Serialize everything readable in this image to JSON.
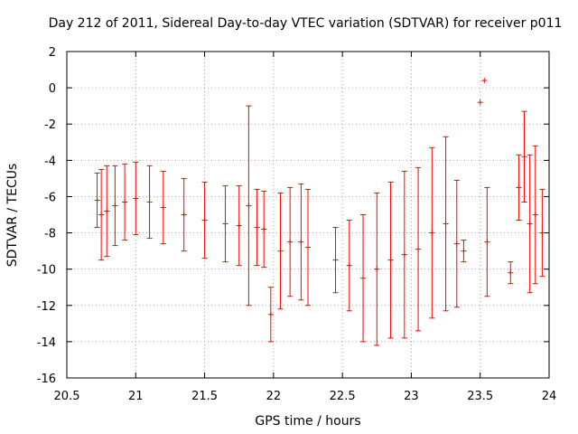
{
  "chart_data": {
    "type": "scatter",
    "title": "Day 212 of 2011, Sidereal Day-to-day VTEC variation (SDTVAR) for receiver p011",
    "xlabel": "GPS time / hours",
    "ylabel": "SDTVAR / TECUs",
    "xlim": [
      20.5,
      24
    ],
    "ylim": [
      -16,
      2
    ],
    "xticks": [
      20.5,
      21,
      21.5,
      22,
      22.5,
      23,
      23.5,
      24
    ],
    "yticks": [
      -16,
      -14,
      -12,
      -10,
      -8,
      -6,
      -4,
      -2,
      0,
      2
    ],
    "grid": true,
    "marker": "+",
    "color": "#ff0000",
    "error_bars": true,
    "series": [
      {
        "name": "SDTVAR",
        "x": [
          20.72,
          20.75,
          20.79,
          20.85,
          20.92,
          21.0,
          21.1,
          21.2,
          21.35,
          21.5,
          21.65,
          21.75,
          21.82,
          21.88,
          21.93,
          21.98,
          22.05,
          22.12,
          22.2,
          22.25,
          22.45,
          22.55,
          22.65,
          22.75,
          22.85,
          22.95,
          23.05,
          23.15,
          23.25,
          23.33,
          23.38,
          23.5,
          23.53,
          23.55,
          23.72,
          23.78,
          23.82,
          23.86,
          23.9,
          23.95
        ],
        "y": [
          -6.2,
          -7.0,
          -6.8,
          -6.5,
          -6.3,
          -6.1,
          -6.3,
          -6.6,
          -7.0,
          -7.3,
          -7.5,
          -7.6,
          -6.5,
          -7.7,
          -7.8,
          -12.5,
          -9.0,
          -8.5,
          -8.5,
          -8.8,
          -9.5,
          -9.8,
          -10.5,
          -10.0,
          -9.5,
          -9.2,
          -8.9,
          -8.0,
          -7.5,
          -8.6,
          -9.0,
          -0.8,
          0.4,
          -8.5,
          -10.2,
          -5.5,
          -3.8,
          -7.5,
          -7.0,
          -8.0
        ],
        "y_err": [
          1.5,
          2.5,
          2.5,
          2.2,
          2.1,
          2.0,
          2.0,
          2.0,
          2.0,
          2.1,
          2.1,
          2.2,
          5.5,
          2.1,
          2.1,
          1.5,
          3.2,
          3.0,
          3.2,
          3.2,
          1.8,
          2.5,
          3.5,
          4.2,
          4.3,
          4.6,
          4.5,
          4.7,
          4.8,
          3.5,
          0.6,
          0.0,
          0.0,
          3.0,
          0.6,
          1.8,
          2.5,
          3.8,
          3.8,
          2.4
        ]
      }
    ]
  }
}
